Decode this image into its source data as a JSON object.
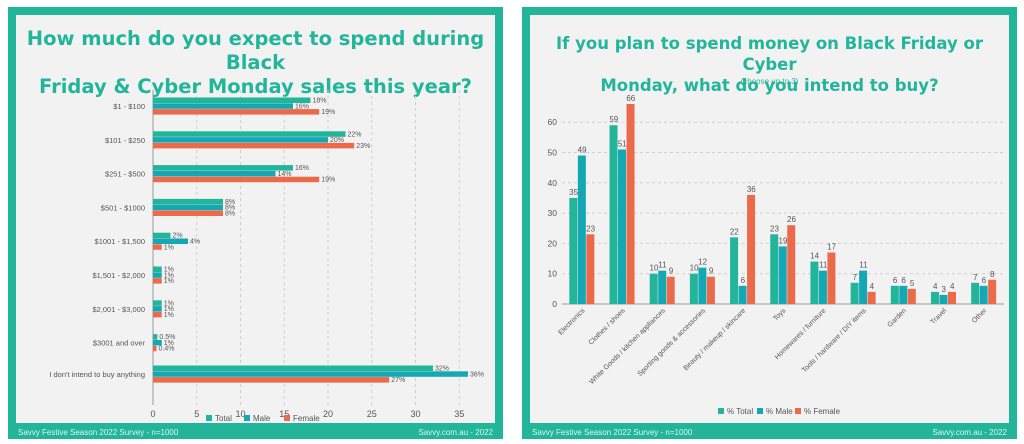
{
  "colors": {
    "total": "#22b59a",
    "male": "#14a8b5",
    "female": "#ec6a4a",
    "grid": "#cfcfcf",
    "text": "#555555"
  },
  "left_panel": {
    "title_line1": "How much do you expect to spend during Black",
    "title_line2": "Friday & Cyber Monday sales this year?",
    "footer_left": "Savvy Festive Season 2022 Survey - n=1000",
    "footer_right": "Savvy.com.au - 2022"
  },
  "right_panel": {
    "title_line1": "If you plan to spend money on Black Friday or Cyber",
    "title_line2": "Monday, what do you intend to buy?",
    "subtitle": "(choose up to 3)",
    "footer_left": "Savvy Festive Season 2022 Survey - n=1000",
    "footer_right": "Savvy.com.au - 2022"
  },
  "chart_data": [
    {
      "type": "bar",
      "orientation": "horizontal",
      "categories": [
        "$1 - $100",
        "$101 - $250",
        "$251 - $500",
        "$501 - $1000",
        "$1001 - $1,500",
        "$1,501 - $2,000",
        "$2,001 - $3,000",
        "$3001 and over",
        "I don't intend to buy anything"
      ],
      "series": [
        {
          "name": "Total",
          "values": [
            18,
            22,
            16,
            8,
            2,
            1,
            1,
            0.5,
            32
          ],
          "labels": [
            "18%",
            "22%",
            "16%",
            "8%",
            "2%",
            "1%",
            "1%",
            "0.5%",
            "32%"
          ]
        },
        {
          "name": "Male",
          "values": [
            16,
            20,
            14,
            8,
            4,
            1,
            1,
            1,
            36
          ],
          "labels": [
            "16%",
            "20%",
            "14%",
            "8%",
            "4%",
            "1%",
            "1%",
            "1%",
            "36%"
          ]
        },
        {
          "name": "Female",
          "values": [
            19,
            23,
            19,
            8,
            1,
            1,
            1,
            0.4,
            27
          ],
          "labels": [
            "19%",
            "23%",
            "19%",
            "8%",
            "1%",
            "1%",
            "1%",
            "0.4%",
            "27%"
          ]
        }
      ],
      "xlim": [
        0,
        36
      ],
      "xticks": [
        0,
        5,
        10,
        15,
        20,
        25,
        30,
        35
      ],
      "grid": true,
      "legend": "bottom"
    },
    {
      "type": "bar",
      "orientation": "vertical",
      "categories": [
        "Electronics",
        "Clothes / shoes",
        "White Goods / kitchen appliances",
        "Sporting goods & accessories",
        "Beauty / makeup / skincare",
        "Toys",
        "Homewares / furniture",
        "Tools / hardware / DIY items",
        "Garden",
        "Travel",
        "Other"
      ],
      "series": [
        {
          "name": "% Total",
          "values": [
            35,
            59,
            10,
            10,
            22,
            23,
            14,
            7,
            6,
            4,
            7
          ]
        },
        {
          "name": "% Male",
          "values": [
            49,
            51,
            11,
            12,
            6,
            19,
            11,
            11,
            6,
            3,
            6
          ]
        },
        {
          "name": "% Female",
          "values": [
            23,
            66,
            9,
            9,
            36,
            26,
            17,
            4,
            5,
            4,
            8
          ]
        }
      ],
      "ylim": [
        0,
        70
      ],
      "yticks": [
        0,
        10,
        20,
        30,
        40,
        50,
        60
      ],
      "grid": true,
      "legend": "bottom"
    }
  ]
}
